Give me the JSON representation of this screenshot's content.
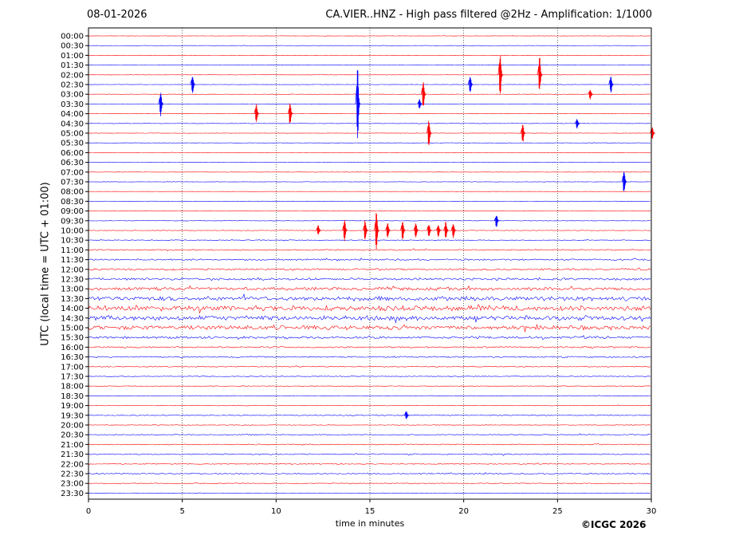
{
  "header": {
    "date": "08-01-2026",
    "title": "CA.VIER..HNZ - High pass filtered @2Hz - Amplification: 1/1000"
  },
  "footer": {
    "copyright": "©ICGC 2026"
  },
  "chart_data": {
    "type": "line",
    "title": "CA.VIER..HNZ - High pass filtered @2Hz - Amplification: 1/1000",
    "xlabel": "time in minutes",
    "ylabel": "UTC (local time = UTC + 01:00)",
    "xlim": [
      0,
      30
    ],
    "x_ticks": [
      0,
      5,
      10,
      15,
      20,
      25,
      30
    ],
    "y_ticks": [
      "00:00",
      "00:30",
      "01:00",
      "01:30",
      "02:00",
      "02:30",
      "03:00",
      "03:30",
      "04:00",
      "04:30",
      "05:00",
      "05:30",
      "06:00",
      "06:30",
      "07:00",
      "07:30",
      "08:00",
      "08:30",
      "09:00",
      "09:30",
      "10:00",
      "10:30",
      "11:00",
      "11:30",
      "12:00",
      "12:30",
      "13:00",
      "13:30",
      "14:00",
      "14:30",
      "15:00",
      "15:30",
      "16:00",
      "16:30",
      "17:00",
      "17:30",
      "18:00",
      "18:30",
      "19:00",
      "19:30",
      "20:00",
      "20:30",
      "21:00",
      "21:30",
      "22:00",
      "22:30",
      "23:00",
      "23:30"
    ],
    "grid": "vertical dotted lines at x ticks",
    "trace_colors": [
      "#ff0000",
      "#0000ff"
    ],
    "traces_noise_level": [
      0.15,
      0.15,
      0.15,
      0.15,
      0.15,
      0.2,
      0.2,
      0.2,
      0.2,
      0.2,
      0.2,
      0.2,
      0.2,
      0.2,
      0.2,
      0.2,
      0.15,
      0.2,
      0.2,
      0.25,
      0.3,
      0.4,
      0.6,
      0.8,
      0.9,
      1.2,
      1.6,
      2.2,
      2.6,
      2.4,
      2.2,
      1.2,
      0.8,
      0.7,
      0.5,
      0.4,
      0.3,
      0.3,
      0.3,
      0.5,
      0.3,
      0.5,
      0.5,
      0.6,
      0.5,
      0.6,
      0.4,
      0.2
    ],
    "events": [
      {
        "row": "02:00",
        "t": 21.9,
        "amp": 2.6
      },
      {
        "row": "02:00",
        "t": 24.0,
        "amp": 2.2
      },
      {
        "row": "02:30",
        "t": 5.5,
        "amp": 1.2
      },
      {
        "row": "02:30",
        "t": 20.3,
        "amp": 1.0
      },
      {
        "row": "02:30",
        "t": 27.8,
        "amp": 1.0
      },
      {
        "row": "03:00",
        "t": 17.8,
        "amp": 1.6
      },
      {
        "row": "03:00",
        "t": 26.7,
        "amp": 0.6
      },
      {
        "row": "03:30",
        "t": 3.8,
        "amp": 1.4
      },
      {
        "row": "03:30",
        "t": 14.3,
        "amp": 4.2
      },
      {
        "row": "03:30",
        "t": 17.6,
        "amp": 0.6
      },
      {
        "row": "04:00",
        "t": 8.9,
        "amp": 1.2
      },
      {
        "row": "04:00",
        "t": 10.7,
        "amp": 1.4
      },
      {
        "row": "04:30",
        "t": 26.0,
        "amp": 0.6
      },
      {
        "row": "05:00",
        "t": 18.1,
        "amp": 1.6
      },
      {
        "row": "05:00",
        "t": 23.1,
        "amp": 1.2
      },
      {
        "row": "05:00",
        "t": 30.0,
        "amp": 0.8
      },
      {
        "row": "07:30",
        "t": 28.5,
        "amp": 1.4
      },
      {
        "row": "09:30",
        "t": 21.7,
        "amp": 0.8
      },
      {
        "row": "10:00",
        "t": 12.2,
        "amp": 0.6
      },
      {
        "row": "10:00",
        "t": 13.6,
        "amp": 1.4
      },
      {
        "row": "10:00",
        "t": 14.7,
        "amp": 1.3
      },
      {
        "row": "10:00",
        "t": 15.3,
        "amp": 2.4
      },
      {
        "row": "10:00",
        "t": 15.9,
        "amp": 1.0
      },
      {
        "row": "10:00",
        "t": 16.7,
        "amp": 1.2
      },
      {
        "row": "10:00",
        "t": 17.4,
        "amp": 1.0
      },
      {
        "row": "10:00",
        "t": 18.1,
        "amp": 0.8
      },
      {
        "row": "10:00",
        "t": 18.6,
        "amp": 0.8
      },
      {
        "row": "10:00",
        "t": 19.0,
        "amp": 1.1
      },
      {
        "row": "10:00",
        "t": 19.4,
        "amp": 0.9
      },
      {
        "row": "19:30",
        "t": 16.9,
        "amp": 0.5
      }
    ]
  }
}
